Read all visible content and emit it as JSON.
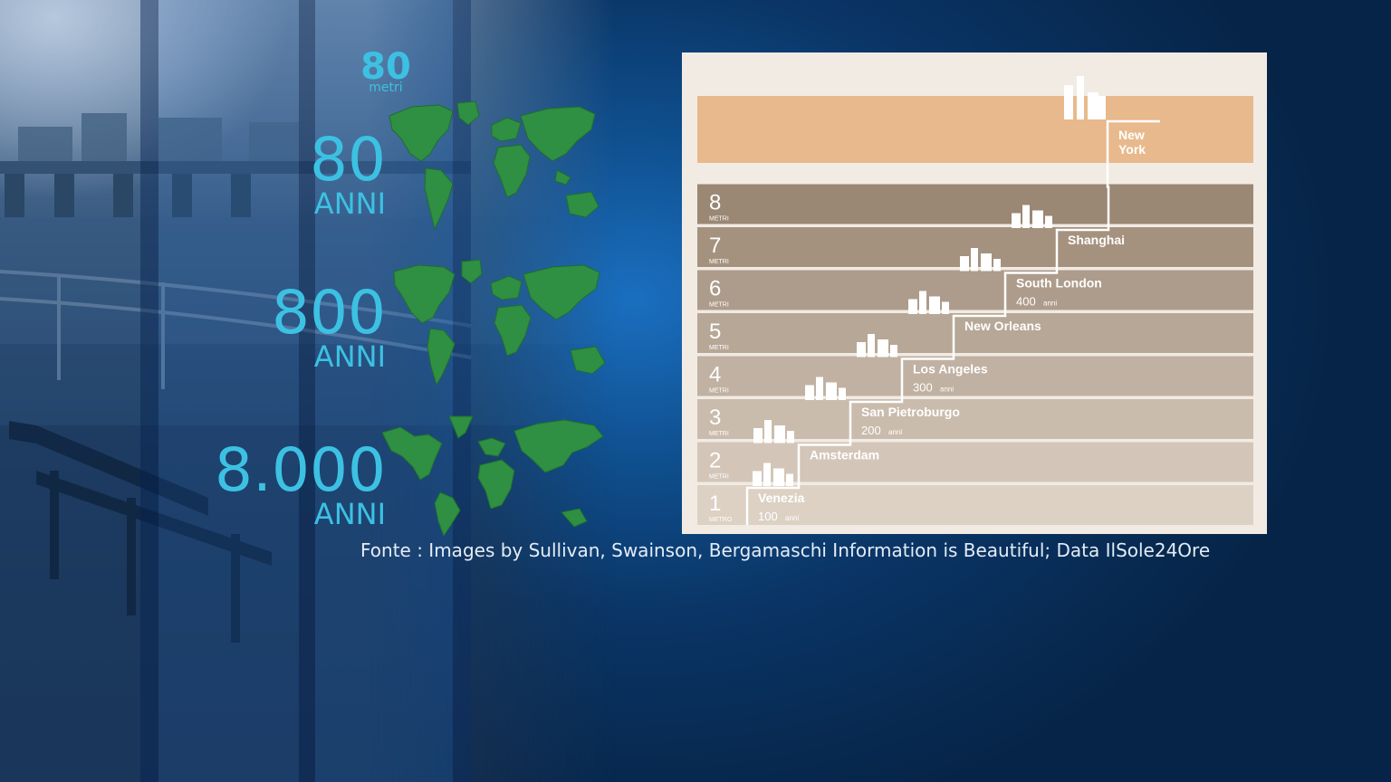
{
  "scale": {
    "value": "80",
    "unit": "metri"
  },
  "eras": [
    {
      "value": "80",
      "unit": "ANNI"
    },
    {
      "value": "800",
      "unit": "ANNI"
    },
    {
      "value": "8.000",
      "unit": "ANNI"
    }
  ],
  "chart_data": {
    "type": "bar",
    "levels": [
      {
        "number": "1",
        "unit": "METRO"
      },
      {
        "number": "2",
        "unit": "METRI"
      },
      {
        "number": "3",
        "unit": "METRI"
      },
      {
        "number": "4",
        "unit": "METRI"
      },
      {
        "number": "5",
        "unit": "METRI"
      },
      {
        "number": "6",
        "unit": "METRI"
      },
      {
        "number": "7",
        "unit": "METRI"
      },
      {
        "number": "8",
        "unit": "METRI"
      }
    ],
    "cities": [
      {
        "name": "Venezia",
        "years": "100",
        "years_unit": "anni",
        "step": 1
      },
      {
        "name": "Amsterdam",
        "years": "",
        "years_unit": "",
        "step": 2
      },
      {
        "name": "San Pietroburgo",
        "years": "200",
        "years_unit": "anni",
        "step": 3
      },
      {
        "name": "Los Angeles",
        "years": "300",
        "years_unit": "anni",
        "step": 4
      },
      {
        "name": "New Orleans",
        "years": "",
        "years_unit": "",
        "step": 5
      },
      {
        "name": "South London",
        "years": "400",
        "years_unit": "anni",
        "step": 6
      },
      {
        "name": "Shanghai",
        "years": "",
        "years_unit": "",
        "step": 7
      },
      {
        "name": "New York",
        "years": "",
        "years_unit": "",
        "step": 9
      }
    ],
    "colors": {
      "card": "#f2ebe4",
      "band_1": "#ddd1c4",
      "band_8": "#9a8774",
      "top_band": "#e8b98c",
      "step_line": "#ffffff"
    }
  },
  "source": "Fonte : Images by Sullivan, Swainson, Bergamaschi Information is Beautiful; Data IlSole24Ore"
}
